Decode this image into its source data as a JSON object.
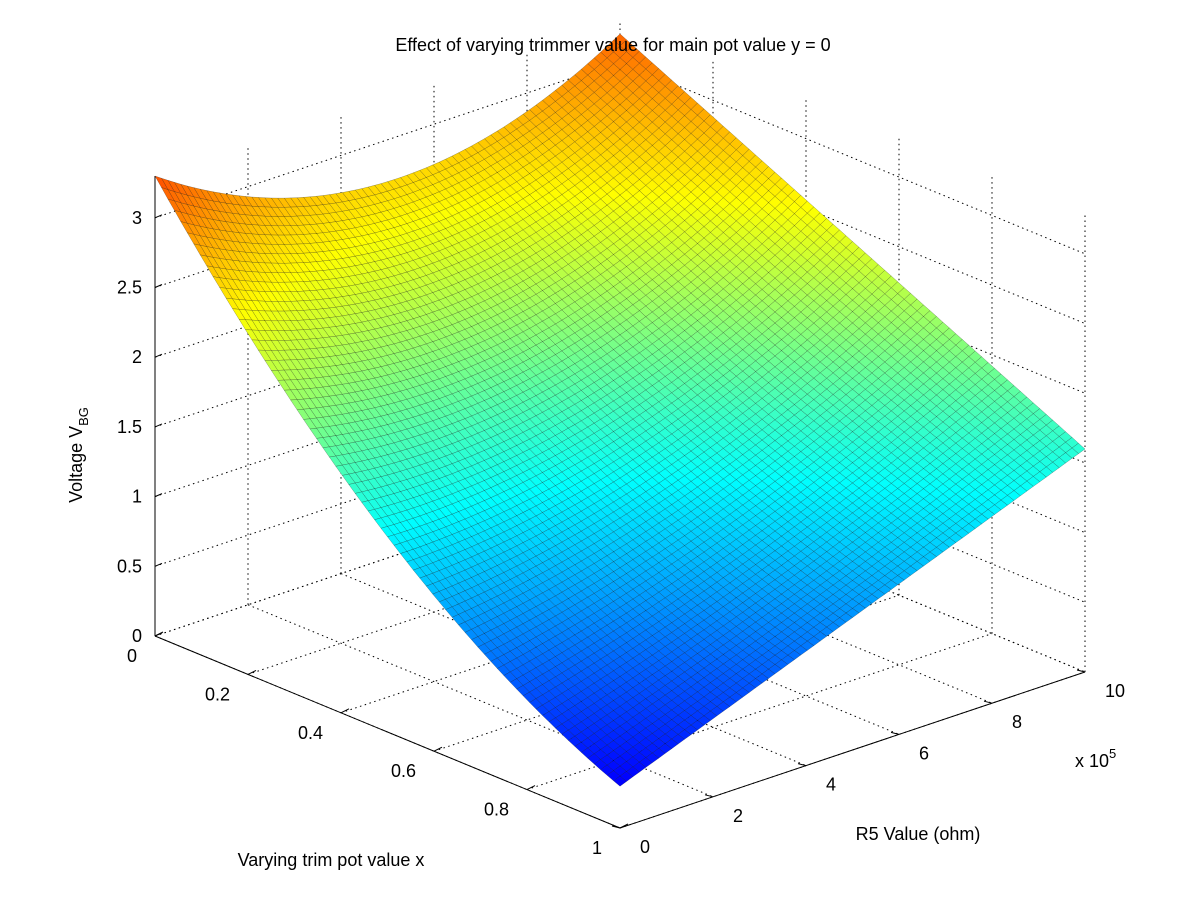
{
  "chart_data": {
    "type": "surface",
    "title": "Effect of varying trimmer value for main pot value y = 0",
    "xlabel": "Varying trim pot value x",
    "ylabel": "R5 Value (ohm)",
    "zlabel": "Voltage V",
    "zlabel_subscript": "BG",
    "y_exponent_label": "x 10",
    "y_exponent": "5",
    "xlim": [
      0,
      1
    ],
    "ylim": [
      0,
      1000000
    ],
    "zlim": [
      0,
      3.3
    ],
    "x_ticks": [
      "0",
      "0.2",
      "0.4",
      "0.6",
      "0.8",
      "1"
    ],
    "y_ticks": [
      "0",
      "2",
      "4",
      "6",
      "8",
      "10"
    ],
    "z_ticks": [
      "0",
      "0.5",
      "1",
      "1.5",
      "2",
      "2.5",
      "3"
    ],
    "grid": true,
    "colormap": "jet",
    "surface_corners": {
      "x0_y0": 3.3,
      "x1_y0": 0.3,
      "x0_y1": 3.2,
      "x1_y1": 1.6
    },
    "edge_y0_midpoint": 1.4,
    "edge_x0_midpoint": 2.7
  }
}
